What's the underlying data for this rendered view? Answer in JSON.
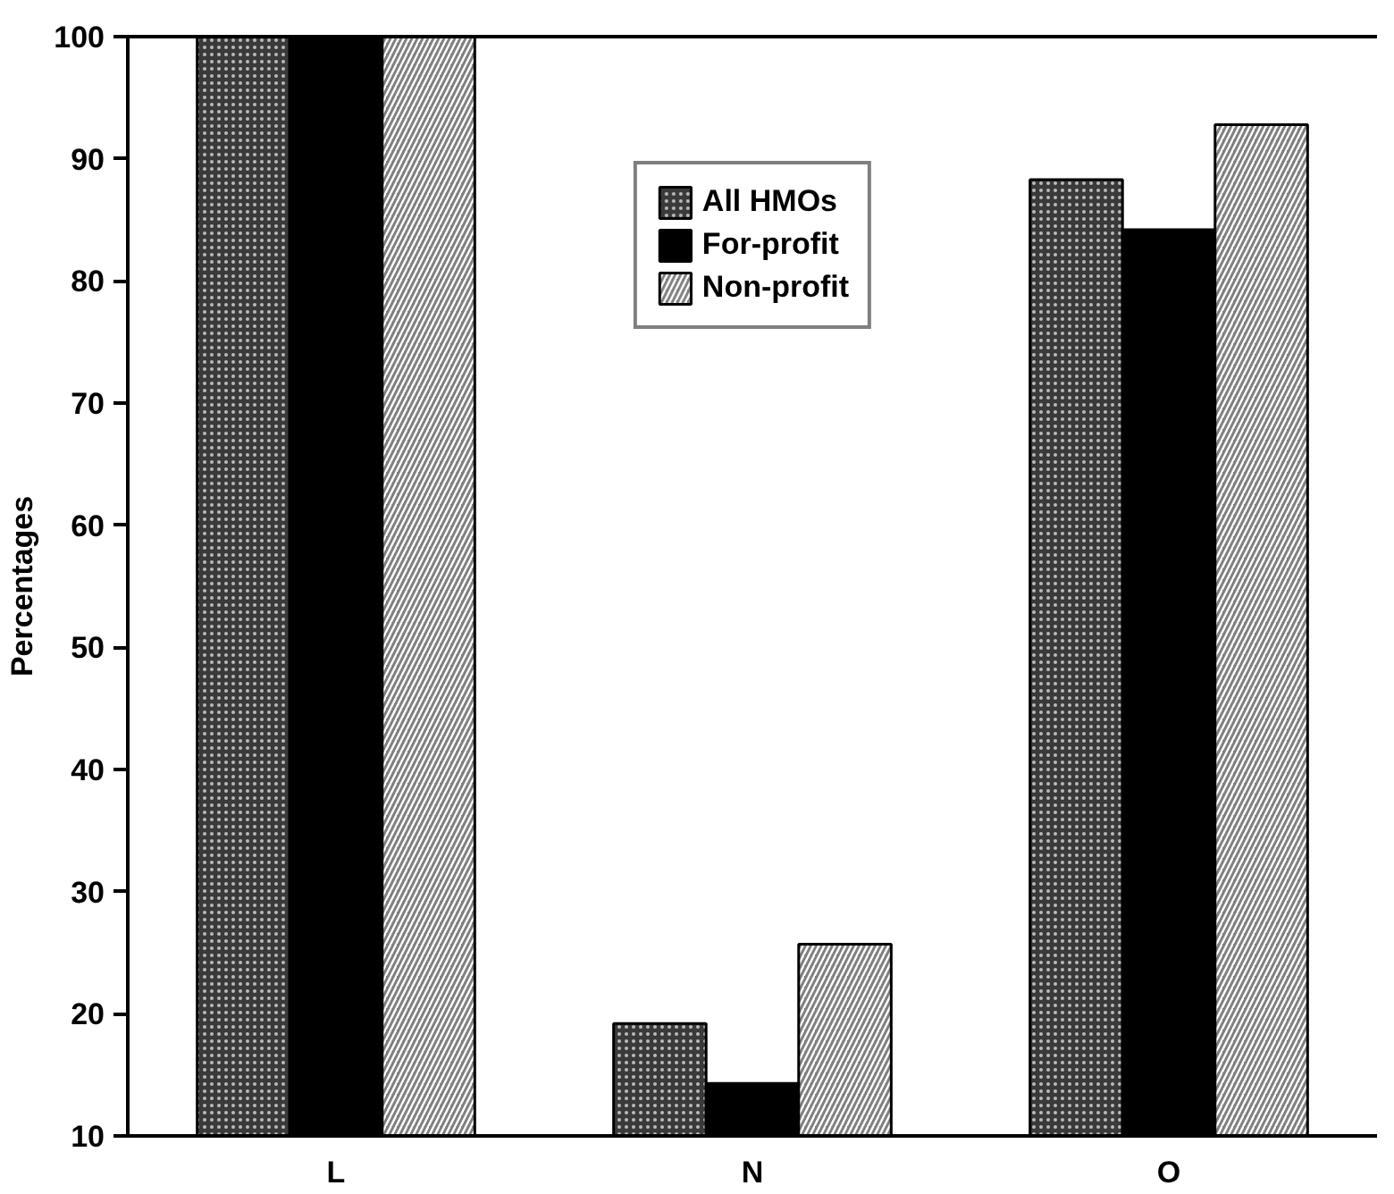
{
  "chart_data": {
    "type": "bar",
    "ylabel": "Percentages",
    "categories": [
      "L",
      "N",
      "O"
    ],
    "series": [
      {
        "name": "All HMOs",
        "color": "#3a3a3a",
        "values": [
          100,
          19.2,
          88.3
        ]
      },
      {
        "name": "For-profit",
        "color": "#000000",
        "values": [
          100,
          14.3,
          84.2
        ]
      },
      {
        "name": "Non-profit",
        "color": "#808080",
        "values": [
          100,
          25.7,
          92.8
        ]
      }
    ],
    "ylim": [
      10,
      100
    ],
    "yticks": [
      10,
      20,
      30,
      40,
      50,
      60,
      70,
      80,
      90,
      100
    ],
    "grid": false,
    "legend": "top"
  }
}
